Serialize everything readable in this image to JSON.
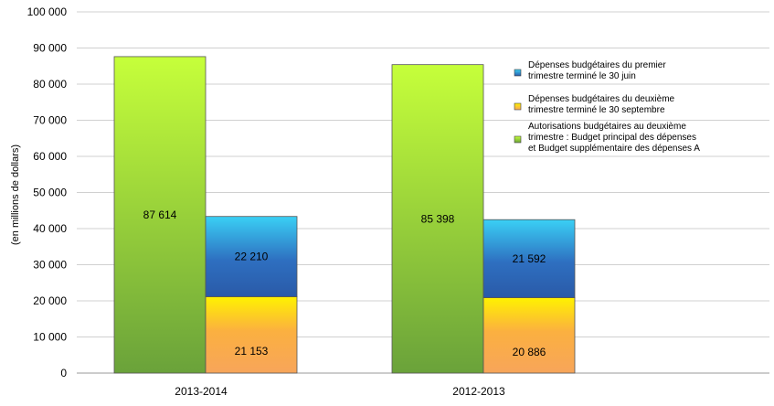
{
  "chart_data": {
    "type": "bar",
    "stacking": "grouped-stacked",
    "title": "",
    "xlabel": "",
    "ylabel": "(en millions de dollars)",
    "ylim": [
      0,
      100000
    ],
    "ytick_values": [
      0,
      10000,
      20000,
      30000,
      40000,
      50000,
      60000,
      70000,
      80000,
      90000,
      100000
    ],
    "ytick_labels": [
      "0",
      "10 000",
      "20 000",
      "30 000",
      "40 000",
      "50 000",
      "60 000",
      "70 000",
      "80 000",
      "90 000",
      "100 000"
    ],
    "grid": true,
    "legend_position": "right",
    "categories": [
      "2013-2014",
      "2012-2013"
    ],
    "series": [
      {
        "name": "Autorisations budgétaires au deuxième trimestre : Budget principal des dépenses et Budget supplémentaire des dépenses A",
        "legend_lines": [
          "Autorisations budgétaires au deuxième",
          "trimestre : Budget principal des dépenses",
          "et Budget supplémentaire des dépenses A"
        ],
        "color": "#a6d63a",
        "stack": "autorisations",
        "values": [
          87614,
          85398
        ],
        "value_labels": [
          "87 614",
          "85 398"
        ]
      },
      {
        "name": "Dépenses budgétaires du deuxième trimestre terminé le 30 septembre",
        "legend_lines": [
          "Dépenses budgétaires du deuxième",
          "trimestre terminé le 30 septembre"
        ],
        "color": "#f9a04a",
        "stack": "depenses",
        "values": [
          21153,
          20886
        ],
        "value_labels": [
          "21 153",
          "20 886"
        ]
      },
      {
        "name": "Dépenses budgétaires du premier trimestre terminé le 30 juin",
        "legend_lines": [
          "Dépenses budgétaires du premier",
          "trimestre terminé le 30 juin"
        ],
        "color": "#3a7ec9",
        "stack": "depenses",
        "values": [
          22210,
          21592
        ],
        "value_labels": [
          "22 210",
          "21 592"
        ]
      }
    ],
    "legend_order": [
      2,
      1,
      0
    ]
  }
}
